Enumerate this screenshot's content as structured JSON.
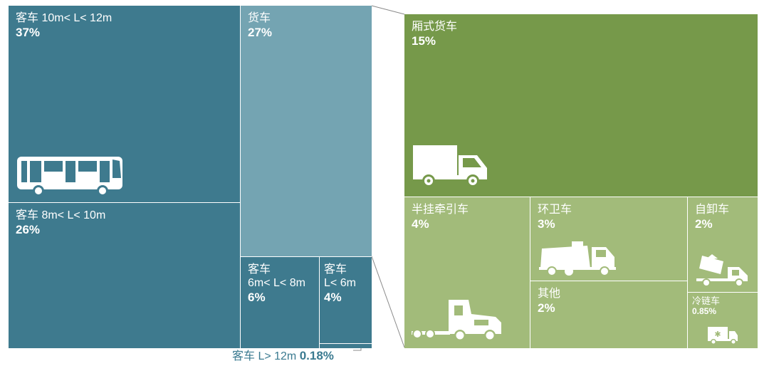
{
  "colors": {
    "bus_dark": "#3e7a8e",
    "bus_mid": "#44819a",
    "truck_light": "#74a4b2",
    "green_dark": "#76994a",
    "green_light": "#a2bb7a",
    "line": "#8a8a8a",
    "footer_text": "#3a7a90"
  },
  "chart_data": {
    "type": "treemap",
    "title": "",
    "groups": [
      {
        "name": "客车",
        "items": [
          {
            "label": "客车 10m< L< 12m",
            "value": 37,
            "value_label": "37%",
            "icon": "bus-icon"
          },
          {
            "label": "客车 8m< L< 10m",
            "value": 26,
            "value_label": "26%"
          },
          {
            "label": "客车 6m< L< 8m",
            "value": 6,
            "value_label": "6%"
          },
          {
            "label": "客车 L< 6m",
            "value": 4,
            "value_label": "4%"
          },
          {
            "label": "客车 L> 12m",
            "value": 0.18,
            "value_label": "0.18%"
          }
        ]
      },
      {
        "name": "货车",
        "value": 27,
        "value_label": "27%",
        "breakdown": [
          {
            "label": "厢式货车",
            "value": 15,
            "value_label": "15%",
            "icon": "box-truck-icon"
          },
          {
            "label": "半挂牵引车",
            "value": 4,
            "value_label": "4%",
            "icon": "semi-truck-icon"
          },
          {
            "label": "环卫车",
            "value": 3,
            "value_label": "3%",
            "icon": "sweeper-truck-icon"
          },
          {
            "label": "其他",
            "value": 2,
            "value_label": "2%"
          },
          {
            "label": "自卸车",
            "value": 2,
            "value_label": "2%",
            "icon": "dump-truck-icon"
          },
          {
            "label": "冷链车",
            "value": 0.85,
            "value_label": "0.85%",
            "icon": "refrigerated-truck-icon"
          }
        ]
      }
    ]
  },
  "cells": {
    "bus_10_12": {
      "line1": "客车 10m< L< 12m",
      "pct": "37%"
    },
    "bus_8_10": {
      "line1": "客车 8m< L< 10m",
      "pct": "26%"
    },
    "truck": {
      "line1": "货车",
      "pct": "27%"
    },
    "bus_6_8": {
      "line1": "客车",
      "line2": "6m< L< 8m",
      "pct": "6%"
    },
    "bus_lt6": {
      "line1": "客车",
      "line2": "L< 6m",
      "pct": "4%"
    },
    "bus_gt12": {
      "line1": "客车 L> 12m",
      "pct": "0.18%"
    },
    "box_truck": {
      "line1": "厢式货车",
      "pct": "15%"
    },
    "semi": {
      "line1": "半挂牵引车",
      "pct": "4%"
    },
    "sanitation": {
      "line1": "环卫车",
      "pct": "3%"
    },
    "other": {
      "line1": "其他",
      "pct": "2%"
    },
    "dump": {
      "line1": "自卸车",
      "pct": "2%"
    },
    "cold_chain": {
      "line1": "冷链车",
      "pct": "0.85%"
    }
  }
}
